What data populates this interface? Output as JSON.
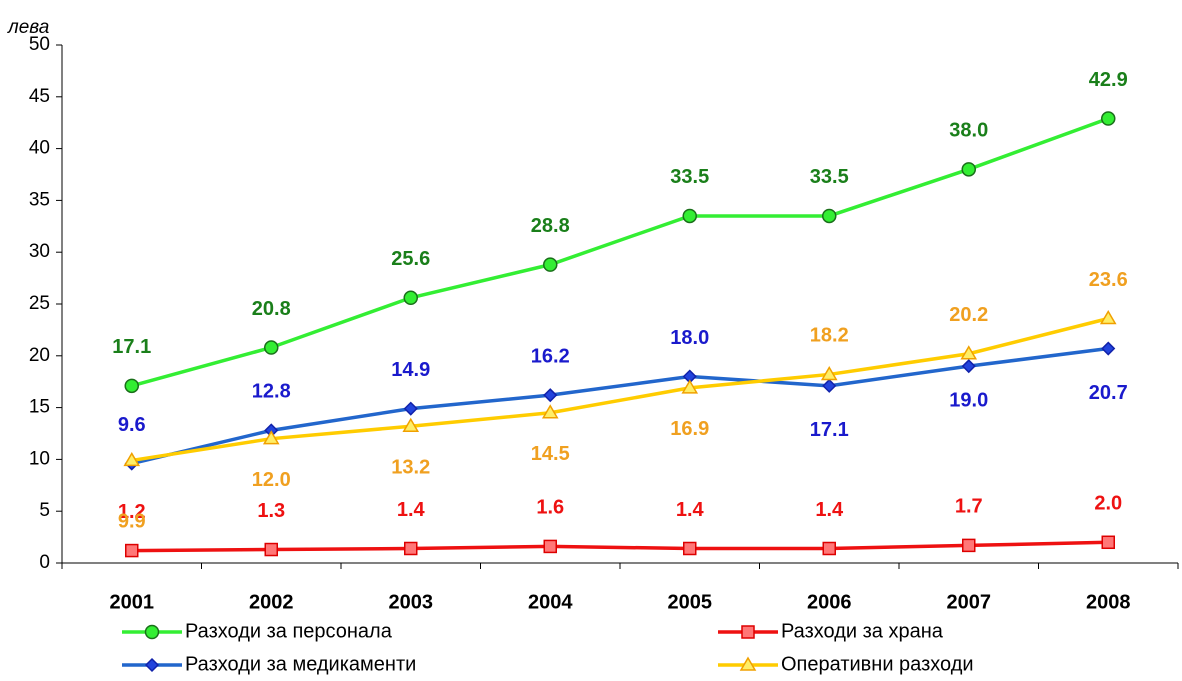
{
  "chart_data": {
    "type": "line",
    "y_label": "лева",
    "categories": [
      "2001",
      "2002",
      "2003",
      "2004",
      "2005",
      "2006",
      "2007",
      "2008"
    ],
    "ylim": [
      0,
      50
    ],
    "yticks": [
      0,
      5,
      10,
      15,
      20,
      25,
      30,
      35,
      40,
      45,
      50
    ],
    "series": [
      {
        "name": "Разходи за персонала",
        "color": "#33ee33",
        "label_color": "#1a7f1a",
        "marker": "circle",
        "values": [
          17.1,
          20.8,
          25.6,
          28.8,
          33.5,
          33.5,
          38.0,
          42.9
        ],
        "value_labels": [
          "17.1",
          "20.8",
          "25.6",
          "28.8",
          "33.5",
          "33.5",
          "38.0",
          "42.9"
        ]
      },
      {
        "name": "Разходи за храна",
        "color": "#ee1111",
        "label_color": "#ee1111",
        "marker": "square",
        "values": [
          1.2,
          1.3,
          1.4,
          1.6,
          1.4,
          1.4,
          1.7,
          2.0
        ],
        "value_labels": [
          "1.2",
          "1.3",
          "1.4",
          "1.6",
          "1.4",
          "1.4",
          "1.7",
          "2.0"
        ]
      },
      {
        "name": "Разходи за медикаменти",
        "color": "#2266cc",
        "label_color": "#1a1acc",
        "marker": "diamond",
        "values": [
          9.6,
          12.8,
          14.9,
          16.2,
          18.0,
          17.1,
          19.0,
          20.7
        ],
        "value_labels": [
          "9.6",
          "12.8",
          "14.9",
          "16.2",
          "18.0",
          "17.1",
          "19.0",
          "20.7"
        ]
      },
      {
        "name": "Оперативни разходи",
        "color": "#ffcc00",
        "label_color": "#f0a020",
        "marker": "triangle",
        "values": [
          9.9,
          12.0,
          13.2,
          14.5,
          16.9,
          18.2,
          20.2,
          23.6
        ],
        "value_labels": [
          "9.9",
          "12.0",
          "13.2",
          "14.5",
          "16.9",
          "18.2",
          "20.2",
          "23.6"
        ]
      }
    ]
  }
}
